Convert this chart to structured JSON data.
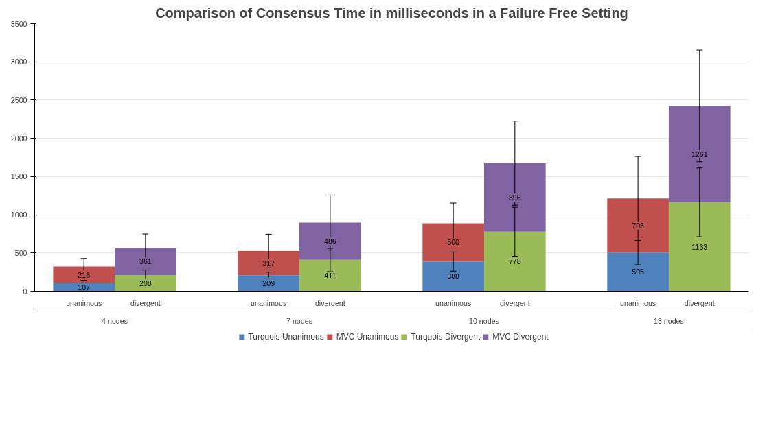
{
  "chart_data": {
    "type": "bar",
    "title": "Comparison of Consensus Time in milliseconds in a Failure Free Setting",
    "categories": [
      "unanimous",
      "divergent",
      "unanimous",
      "divergent",
      "unanimous",
      "divergent",
      "unanimous",
      "divergent"
    ],
    "annotations": [
      "4 nodes",
      "7 nodes",
      "10 nodes",
      "13 nodes"
    ],
    "stacked": true,
    "data_labels": true,
    "grid": "y",
    "legend": "bottom",
    "ylim": [
      0,
      3500
    ],
    "yticks": [
      0,
      500,
      1000,
      1500,
      2000,
      2500,
      3000,
      3500
    ],
    "series": [
      {
        "name": "Turquois Unanimous",
        "color": "#4f81bd",
        "values": [
          107,
          null,
          209,
          null,
          388,
          null,
          505,
          null
        ],
        "errors": [
          35,
          null,
          40,
          null,
          125,
          null,
          160,
          null
        ]
      },
      {
        "name": "MVC Unanimous",
        "color": "#c0504d",
        "values": [
          216,
          null,
          317,
          null,
          500,
          null,
          708,
          null
        ],
        "errors": [
          105,
          null,
          220,
          null,
          265,
          null,
          550,
          null
        ]
      },
      {
        "name": "Turquois Divergent",
        "color": "#9bbb59",
        "values": [
          null,
          208,
          null,
          411,
          null,
          778,
          null,
          1163
        ],
        "errors": [
          null,
          70,
          null,
          150,
          null,
          320,
          null,
          450
        ]
      },
      {
        "name": "MVC Divergent",
        "color": "#8064a2",
        "values": [
          null,
          361,
          null,
          486,
          null,
          896,
          null,
          1261
        ],
        "errors": [
          null,
          180,
          null,
          360,
          null,
          550,
          null,
          730
        ]
      }
    ]
  }
}
